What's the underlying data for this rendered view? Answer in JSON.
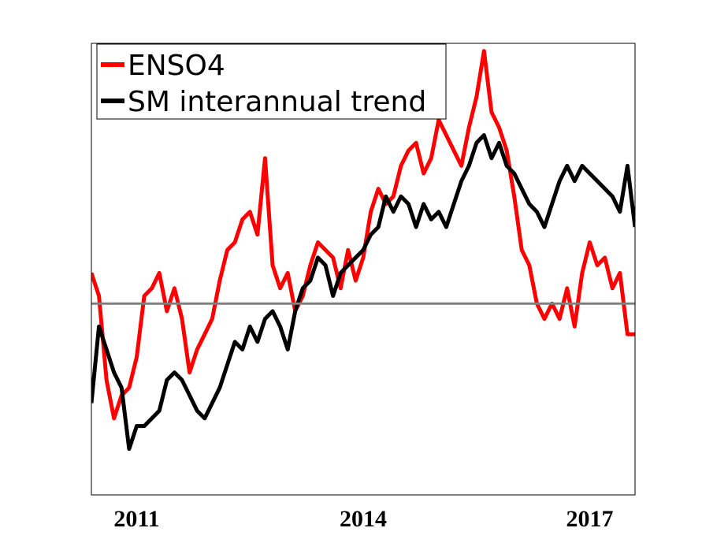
{
  "chart_data": {
    "type": "line",
    "title": "",
    "xlabel": "",
    "ylabel": "",
    "x_tick_labels": [
      "2011",
      "2014",
      "2017"
    ],
    "x_ticks": [
      2011,
      2014,
      2017
    ],
    "xlim": [
      2010.4,
      2017.6
    ],
    "ylim": [
      -1.25,
      1.7
    ],
    "y_ticks_visible": false,
    "grid": false,
    "legend_placement": "top-left",
    "reference_line": {
      "y": 0,
      "color": "#808080"
    },
    "series": [
      {
        "name": "ENSO4",
        "color": "#ff0000",
        "x": [
          2010.4,
          2010.5,
          2010.6,
          2010.7,
          2010.8,
          2010.9,
          2011.0,
          2011.1,
          2011.2,
          2011.3,
          2011.4,
          2011.5,
          2011.6,
          2011.7,
          2011.8,
          2011.9,
          2012.0,
          2012.1,
          2012.2,
          2012.3,
          2012.4,
          2012.5,
          2012.6,
          2012.7,
          2012.8,
          2012.9,
          2013.0,
          2013.1,
          2013.2,
          2013.3,
          2013.4,
          2013.5,
          2013.6,
          2013.7,
          2013.8,
          2013.9,
          2014.0,
          2014.1,
          2014.2,
          2014.3,
          2014.4,
          2014.5,
          2014.6,
          2014.7,
          2014.8,
          2014.9,
          2015.0,
          2015.1,
          2015.2,
          2015.3,
          2015.4,
          2015.5,
          2015.6,
          2015.7,
          2015.8,
          2015.9,
          2016.0,
          2016.1,
          2016.2,
          2016.3,
          2016.4,
          2016.5,
          2016.6,
          2016.7,
          2016.8,
          2016.9,
          2017.0,
          2017.1,
          2017.2,
          2017.3,
          2017.4,
          2017.5,
          2017.6
        ],
        "y": [
          0.2,
          0.05,
          -0.5,
          -0.75,
          -0.6,
          -0.55,
          -0.35,
          0.05,
          0.1,
          0.2,
          -0.05,
          0.1,
          -0.1,
          -0.45,
          -0.3,
          -0.2,
          -0.1,
          0.15,
          0.35,
          0.4,
          0.55,
          0.6,
          0.45,
          0.95,
          0.25,
          0.1,
          0.2,
          -0.05,
          0.05,
          0.25,
          0.4,
          0.35,
          0.3,
          0.1,
          0.35,
          0.15,
          0.3,
          0.6,
          0.75,
          0.65,
          0.7,
          0.9,
          1.0,
          1.05,
          0.85,
          0.95,
          1.2,
          1.1,
          1.0,
          0.9,
          1.15,
          1.35,
          1.65,
          1.25,
          1.15,
          1.0,
          0.7,
          0.35,
          0.25,
          0.0,
          -0.1,
          0.0,
          -0.1,
          0.1,
          -0.15,
          0.2,
          0.4,
          0.25,
          0.3,
          0.1,
          0.2,
          -0.2,
          -0.2
        ]
      },
      {
        "name": "SM interannual trend",
        "color": "#000000",
        "x": [
          2010.4,
          2010.5,
          2010.6,
          2010.7,
          2010.8,
          2010.9,
          2011.0,
          2011.1,
          2011.2,
          2011.3,
          2011.4,
          2011.5,
          2011.6,
          2011.7,
          2011.8,
          2011.9,
          2012.0,
          2012.1,
          2012.2,
          2012.3,
          2012.4,
          2012.5,
          2012.6,
          2012.7,
          2012.8,
          2012.9,
          2013.0,
          2013.1,
          2013.2,
          2013.3,
          2013.4,
          2013.5,
          2013.6,
          2013.7,
          2013.8,
          2013.9,
          2014.0,
          2014.1,
          2014.2,
          2014.3,
          2014.4,
          2014.5,
          2014.6,
          2014.7,
          2014.8,
          2014.9,
          2015.0,
          2015.1,
          2015.2,
          2015.3,
          2015.4,
          2015.5,
          2015.6,
          2015.7,
          2015.8,
          2015.9,
          2016.0,
          2016.1,
          2016.2,
          2016.3,
          2016.4,
          2016.5,
          2016.6,
          2016.7,
          2016.8,
          2016.9,
          2017.0,
          2017.1,
          2017.2,
          2017.3,
          2017.4,
          2017.5,
          2017.6
        ],
        "y": [
          -0.65,
          -0.15,
          -0.3,
          -0.45,
          -0.55,
          -0.95,
          -0.8,
          -0.8,
          -0.75,
          -0.7,
          -0.5,
          -0.45,
          -0.5,
          -0.6,
          -0.7,
          -0.75,
          -0.65,
          -0.55,
          -0.4,
          -0.25,
          -0.3,
          -0.15,
          -0.25,
          -0.1,
          -0.05,
          -0.15,
          -0.3,
          -0.05,
          0.1,
          0.15,
          0.3,
          0.25,
          0.05,
          0.2,
          0.25,
          0.3,
          0.35,
          0.45,
          0.5,
          0.7,
          0.6,
          0.7,
          0.65,
          0.5,
          0.65,
          0.55,
          0.6,
          0.5,
          0.65,
          0.8,
          0.9,
          1.05,
          1.1,
          0.95,
          1.05,
          0.9,
          0.85,
          0.75,
          0.65,
          0.6,
          0.5,
          0.65,
          0.8,
          0.9,
          0.8,
          0.9,
          0.85,
          0.8,
          0.75,
          0.7,
          0.6,
          0.9,
          0.5
        ]
      }
    ]
  }
}
